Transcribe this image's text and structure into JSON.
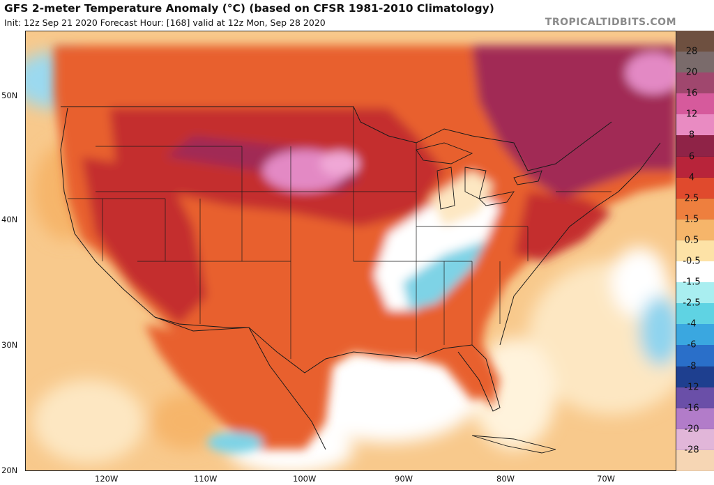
{
  "header": {
    "title": "GFS 2-meter Temperature Anomaly (°C) (based on CFSR 1981-2010 Climatology)",
    "subtitle": "Init: 12z Sep 21 2020   Forecast Hour: [168]   valid at 12z Mon, Sep 28 2020",
    "brand": "TROPICALTIDBITS.COM"
  },
  "axes": {
    "lat_labels": [
      "50N",
      "40N",
      "30N",
      "20N"
    ],
    "lon_labels": [
      "120W",
      "110W",
      "100W",
      "90W",
      "80W",
      "70W"
    ]
  },
  "colorbar": {
    "labels": [
      "28",
      "20",
      "16",
      "12",
      "8",
      "6",
      "4",
      "2.5",
      "1.5",
      "0.5",
      "-0.5",
      "-1.5",
      "-2.5",
      "-4",
      "-6",
      "-8",
      "-12",
      "-16",
      "-20",
      "-28"
    ],
    "colors": [
      "#6e5040",
      "#7a6b6b",
      "#a0476e",
      "#d65a9c",
      "#e98bc2",
      "#8f2347",
      "#b8243a",
      "#e04a2d",
      "#ee7f3e",
      "#f6b56a",
      "#fde2a6",
      "#ffffff",
      "#a9eef0",
      "#5fd3e3",
      "#3aa7e0",
      "#2a6fc9",
      "#1e3f8f",
      "#6a4fa8",
      "#b27cc9",
      "#e1b6d9",
      "#f6d6b4"
    ]
  },
  "map": {
    "colors": {
      "ocean_warm": "#f8c98c",
      "ocean_pale": "#fde7c2",
      "land_warm": "#e8602e",
      "land_hot": "#c42f2f",
      "anom_high": "#a12a55",
      "anom_peak": "#e389c4",
      "cool": "#7ed3e6",
      "neutral": "#ffffff",
      "border": "#1a1a1a"
    }
  }
}
